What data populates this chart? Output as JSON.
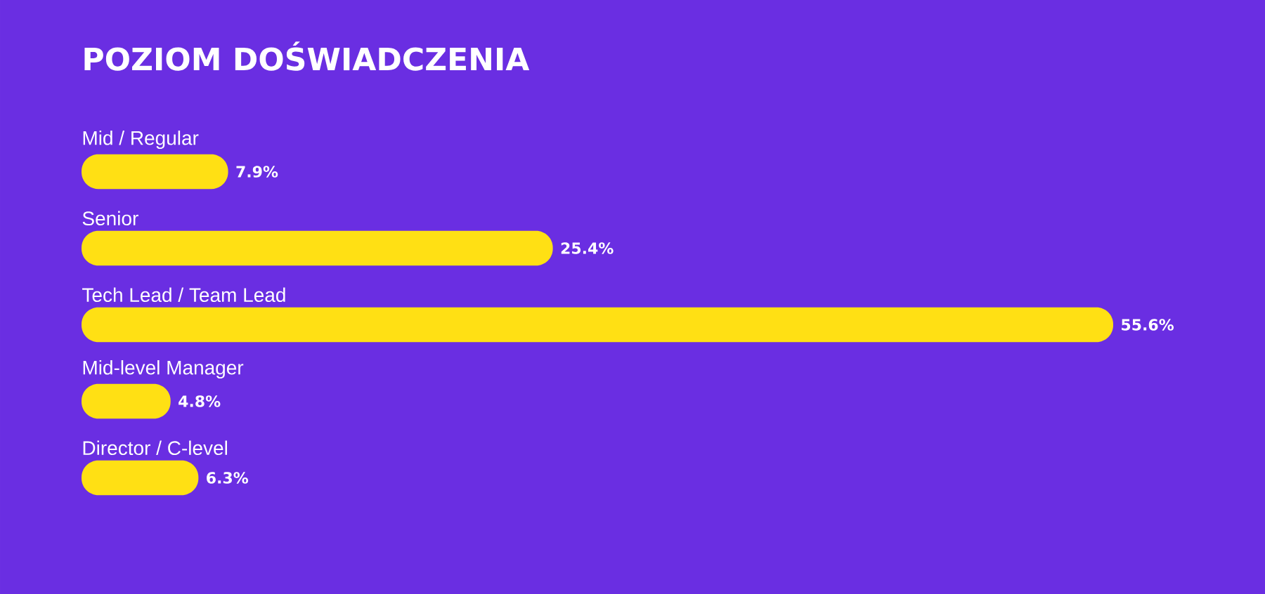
{
  "chart_data": {
    "type": "bar",
    "orientation": "horizontal",
    "title": "POZIOM DOŚWIADCZENIA",
    "categories": [
      "Mid / Regular",
      "Senior",
      "Tech Lead / Team Lead",
      "Mid-level Manager",
      "Director / C-level"
    ],
    "values": [
      7.9,
      25.4,
      55.6,
      4.8,
      6.3
    ],
    "value_labels": [
      "7.9%",
      "25.4%",
      "55.6%",
      "4.8%",
      "6.3%"
    ],
    "color": "#ffe014"
  }
}
